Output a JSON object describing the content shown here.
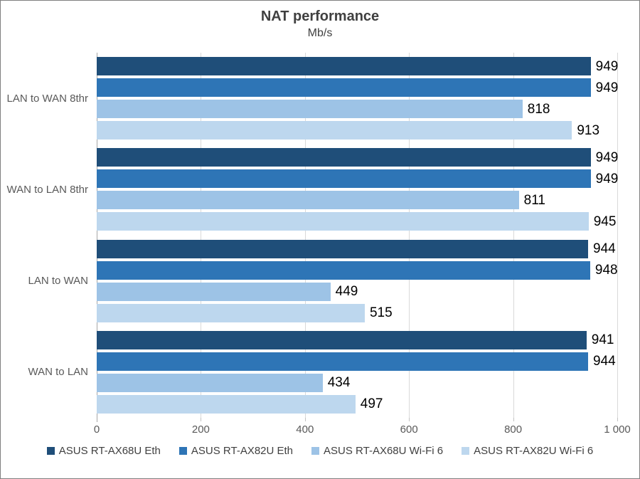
{
  "title": "NAT performance",
  "subtitle": "Mb/s",
  "chart_data": {
    "type": "bar",
    "orientation": "horizontal",
    "title": "NAT performance",
    "subtitle": "Mb/s",
    "categories": [
      "LAN to WAN 8thr",
      "WAN to LAN 8thr",
      "LAN to WAN",
      "WAN to LAN"
    ],
    "series": [
      {
        "name": "ASUS RT-AX68U Eth",
        "color": "#1F4E79",
        "values": [
          949,
          949,
          944,
          941
        ]
      },
      {
        "name": "ASUS RT-AX82U Eth",
        "color": "#2E75B6",
        "values": [
          949,
          949,
          948,
          944
        ]
      },
      {
        "name": "ASUS RT-AX68U Wi-Fi 6",
        "color": "#9DC3E6",
        "values": [
          818,
          811,
          449,
          434
        ]
      },
      {
        "name": "ASUS RT-AX82U Wi-Fi 6",
        "color": "#BDD7EE",
        "values": [
          913,
          945,
          515,
          497
        ]
      }
    ],
    "xlim": [
      0,
      1000
    ],
    "x_ticks": [
      "0",
      "200",
      "400",
      "600",
      "800",
      "1 000"
    ],
    "x_tick_values": [
      0,
      200,
      400,
      600,
      800,
      1000
    ],
    "data_labels": true,
    "grid": "vertical",
    "legend_position": "bottom"
  },
  "colors": {
    "background": "#FFFFFF",
    "border": "#808080",
    "gridline": "#D9D9D9",
    "axis_line": "#A6A6A6",
    "title_text": "#404040",
    "axis_text": "#595959",
    "value_label_text": "#000000",
    "legend_text": "#404040"
  }
}
